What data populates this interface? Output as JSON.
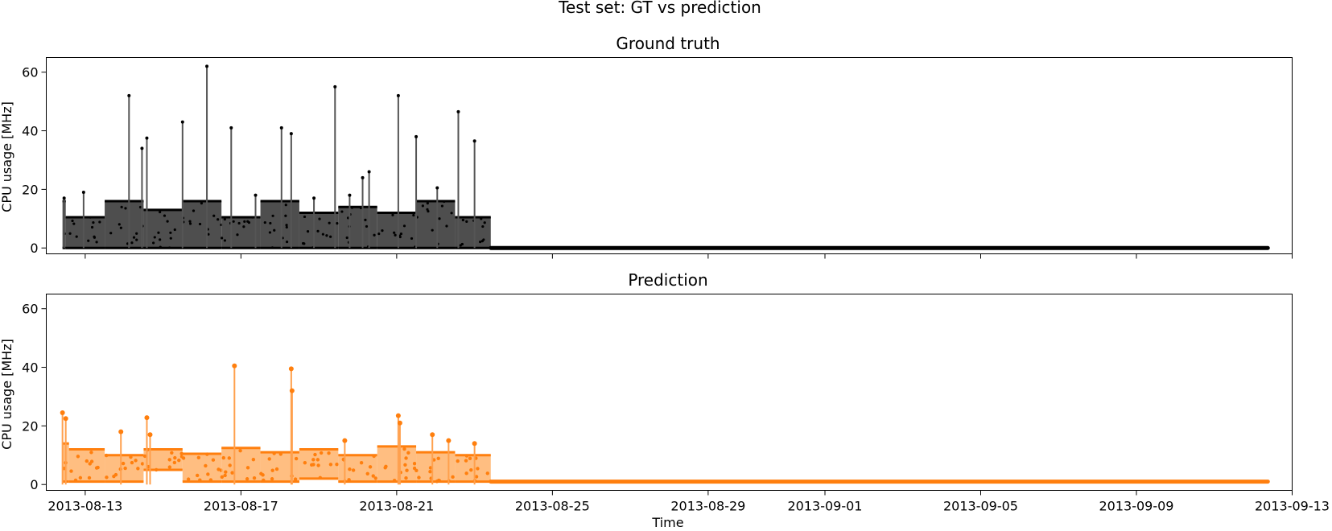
{
  "suptitle": "Test set: GT vs prediction",
  "chart_data": [
    {
      "type": "line",
      "title": "Ground truth",
      "xlabel": "",
      "ylabel": "CPU usage [MHz]",
      "ylim": [
        -2,
        65
      ],
      "yticks": [
        0,
        20,
        40,
        60
      ],
      "xticks": [
        "2013-08-13",
        "2013-08-17",
        "2013-08-21",
        "2013-08-25",
        "2013-08-29",
        "2013-09-01",
        "2013-09-05",
        "2013-09-09",
        "2013-09-13"
      ],
      "xlim": [
        "2013-08-12",
        "2013-09-13"
      ],
      "color": "#000000",
      "series": [
        {
          "levels": [
            {
              "start": "2013-08-12T10:00",
              "end": "2013-08-12T12:00",
              "hi": 16,
              "lo": 0
            },
            {
              "start": "2013-08-12T12:00",
              "end": "2013-08-13T12:00",
              "hi": 10.5,
              "lo": 0
            },
            {
              "start": "2013-08-13T12:00",
              "end": "2013-08-14T12:00",
              "hi": 16,
              "lo": 0
            },
            {
              "start": "2013-08-14T12:00",
              "end": "2013-08-15T12:00",
              "hi": 13,
              "lo": 0
            },
            {
              "start": "2013-08-15T12:00",
              "end": "2013-08-16T12:00",
              "hi": 16,
              "lo": 0
            },
            {
              "start": "2013-08-16T12:00",
              "end": "2013-08-17T12:00",
              "hi": 10.5,
              "lo": 0
            },
            {
              "start": "2013-08-17T12:00",
              "end": "2013-08-18T12:00",
              "hi": 16,
              "lo": 0
            },
            {
              "start": "2013-08-18T12:00",
              "end": "2013-08-19T12:00",
              "hi": 12,
              "lo": 0
            },
            {
              "start": "2013-08-19T12:00",
              "end": "2013-08-20T12:00",
              "hi": 14,
              "lo": 0
            },
            {
              "start": "2013-08-20T12:00",
              "end": "2013-08-21T12:00",
              "hi": 12,
              "lo": 0
            },
            {
              "start": "2013-08-21T12:00",
              "end": "2013-08-22T12:00",
              "hi": 16,
              "lo": 0
            },
            {
              "start": "2013-08-22T12:00",
              "end": "2013-08-23T10:00",
              "hi": 10.5,
              "lo": 0
            }
          ],
          "spikes": [
            {
              "t": "2013-08-12T11:00",
              "v": 17
            },
            {
              "t": "2013-08-12T23:00",
              "v": 19
            },
            {
              "t": "2013-08-14T03:00",
              "v": 52
            },
            {
              "t": "2013-08-14T11:00",
              "v": 34
            },
            {
              "t": "2013-08-14T14:00",
              "v": 37.5
            },
            {
              "t": "2013-08-15T12:00",
              "v": 43
            },
            {
              "t": "2013-08-16T03:00",
              "v": 62
            },
            {
              "t": "2013-08-16T18:00",
              "v": 41
            },
            {
              "t": "2013-08-17T09:00",
              "v": 18
            },
            {
              "t": "2013-08-18T01:00",
              "v": 41
            },
            {
              "t": "2013-08-18T07:00",
              "v": 39
            },
            {
              "t": "2013-08-18T21:00",
              "v": 17
            },
            {
              "t": "2013-08-19T10:00",
              "v": 55
            },
            {
              "t": "2013-08-19T19:00",
              "v": 18
            },
            {
              "t": "2013-08-20T03:00",
              "v": 24
            },
            {
              "t": "2013-08-20T07:00",
              "v": 26
            },
            {
              "t": "2013-08-21T01:00",
              "v": 52
            },
            {
              "t": "2013-08-21T12:00",
              "v": 38
            },
            {
              "t": "2013-08-22T01:00",
              "v": 20.5
            },
            {
              "t": "2013-08-22T14:00",
              "v": 46.5
            },
            {
              "t": "2013-08-23T00:00",
              "v": 36.5
            }
          ],
          "tail": {
            "start": "2013-08-23T10:00",
            "end": "2013-09-12T09:00",
            "v": 0
          }
        }
      ]
    },
    {
      "type": "line",
      "title": "Prediction",
      "xlabel": "Time",
      "ylabel": "CPU usage [MHz]",
      "ylim": [
        -2,
        65
      ],
      "yticks": [
        0,
        20,
        40,
        60
      ],
      "xticks": [
        "2013-08-13",
        "2013-08-17",
        "2013-08-21",
        "2013-08-25",
        "2013-08-29",
        "2013-09-01",
        "2013-09-05",
        "2013-09-09",
        "2013-09-13"
      ],
      "xlim": [
        "2013-08-12",
        "2013-09-13"
      ],
      "color": "#ff7f0e",
      "series": [
        {
          "levels": [
            {
              "start": "2013-08-12T10:00",
              "end": "2013-08-12T14:00",
              "hi": 14,
              "lo": 1
            },
            {
              "start": "2013-08-12T14:00",
              "end": "2013-08-13T12:00",
              "hi": 12,
              "lo": 1
            },
            {
              "start": "2013-08-13T12:00",
              "end": "2013-08-14T12:00",
              "hi": 10,
              "lo": 1
            },
            {
              "start": "2013-08-14T12:00",
              "end": "2013-08-15T12:00",
              "hi": 12,
              "lo": 5
            },
            {
              "start": "2013-08-15T12:00",
              "end": "2013-08-16T12:00",
              "hi": 10.5,
              "lo": 1
            },
            {
              "start": "2013-08-16T12:00",
              "end": "2013-08-17T12:00",
              "hi": 12.5,
              "lo": 1
            },
            {
              "start": "2013-08-17T12:00",
              "end": "2013-08-18T12:00",
              "hi": 11,
              "lo": 1
            },
            {
              "start": "2013-08-18T12:00",
              "end": "2013-08-19T12:00",
              "hi": 12,
              "lo": 2
            },
            {
              "start": "2013-08-19T12:00",
              "end": "2013-08-20T12:00",
              "hi": 10,
              "lo": 1
            },
            {
              "start": "2013-08-20T12:00",
              "end": "2013-08-21T12:00",
              "hi": 13,
              "lo": 1
            },
            {
              "start": "2013-08-21T12:00",
              "end": "2013-08-22T12:00",
              "hi": 11,
              "lo": 1
            },
            {
              "start": "2013-08-22T12:00",
              "end": "2013-08-23T10:00",
              "hi": 10,
              "lo": 1
            }
          ],
          "spikes": [
            {
              "t": "2013-08-12T10:00",
              "v": 24.5
            },
            {
              "t": "2013-08-12T12:00",
              "v": 22.5
            },
            {
              "t": "2013-08-13T22:00",
              "v": 18
            },
            {
              "t": "2013-08-14T14:00",
              "v": 22.8
            },
            {
              "t": "2013-08-14T16:00",
              "v": 17
            },
            {
              "t": "2013-08-16T20:00",
              "v": 40.5
            },
            {
              "t": "2013-08-18T07:00",
              "v": 39.5
            },
            {
              "t": "2013-08-18T07:30",
              "v": 32
            },
            {
              "t": "2013-08-19T16:00",
              "v": 15
            },
            {
              "t": "2013-08-21T01:00",
              "v": 23.5
            },
            {
              "t": "2013-08-21T02:00",
              "v": 21
            },
            {
              "t": "2013-08-21T22:00",
              "v": 17
            },
            {
              "t": "2013-08-22T08:00",
              "v": 15
            },
            {
              "t": "2013-08-23T00:00",
              "v": 14
            }
          ],
          "tail": {
            "start": "2013-08-23T10:00",
            "end": "2013-09-12T09:00",
            "v": 1
          }
        }
      ]
    }
  ]
}
